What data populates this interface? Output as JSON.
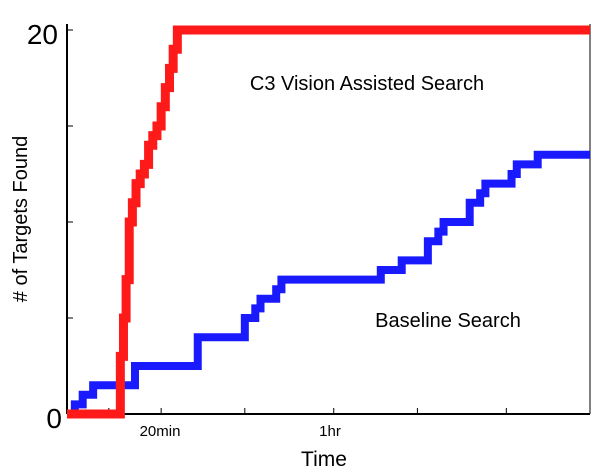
{
  "chart_data": {
    "type": "line",
    "title": "",
    "xlabel": "Time",
    "ylabel": "# of Targets Found",
    "xlim": [
      0,
      100
    ],
    "ylim": [
      0,
      20
    ],
    "x_ticks": [
      {
        "value": 18,
        "label": "20min"
      },
      {
        "value": 51,
        "label": "1hr"
      }
    ],
    "y_ticks": [
      {
        "value": 0,
        "label": "0"
      },
      {
        "value": 20,
        "label": "20"
      }
    ],
    "annotations": [
      {
        "text": "C3 Vision Assisted Search",
        "series": "c3"
      },
      {
        "text": "Baseline Search",
        "series": "baseline"
      }
    ],
    "series": [
      {
        "key": "c3",
        "color": "#ff1a1a",
        "x": [
          0,
          9.8,
          10.2,
          10.8,
          11.3,
          11.9,
          12.5,
          13.2,
          14.0,
          14.8,
          15.6,
          16.4,
          17.2,
          18.0,
          18.8,
          19.6,
          20.3,
          21.1,
          100
        ],
        "y": [
          0,
          0,
          3,
          5,
          7,
          10,
          11,
          12,
          12.5,
          13,
          14,
          14.5,
          15,
          16,
          17,
          18,
          19,
          20,
          20
        ]
      },
      {
        "key": "baseline",
        "color": "#1a1aff",
        "x": [
          0,
          1.5,
          3,
          5,
          10,
          13,
          24,
          25,
          33,
          34,
          36,
          37,
          40,
          41,
          59,
          60,
          63,
          64,
          68,
          69,
          71,
          72,
          76,
          77,
          79,
          80,
          85,
          86,
          89,
          90,
          100
        ],
        "y": [
          0,
          0.5,
          1,
          1.5,
          1.5,
          2.5,
          2.5,
          4,
          4,
          5,
          5.5,
          6,
          6.5,
          7,
          7,
          7.5,
          7.5,
          8,
          8,
          9,
          9.5,
          10,
          10,
          11,
          11.5,
          12,
          12.5,
          13,
          13,
          13.5,
          13.5
        ]
      }
    ]
  }
}
